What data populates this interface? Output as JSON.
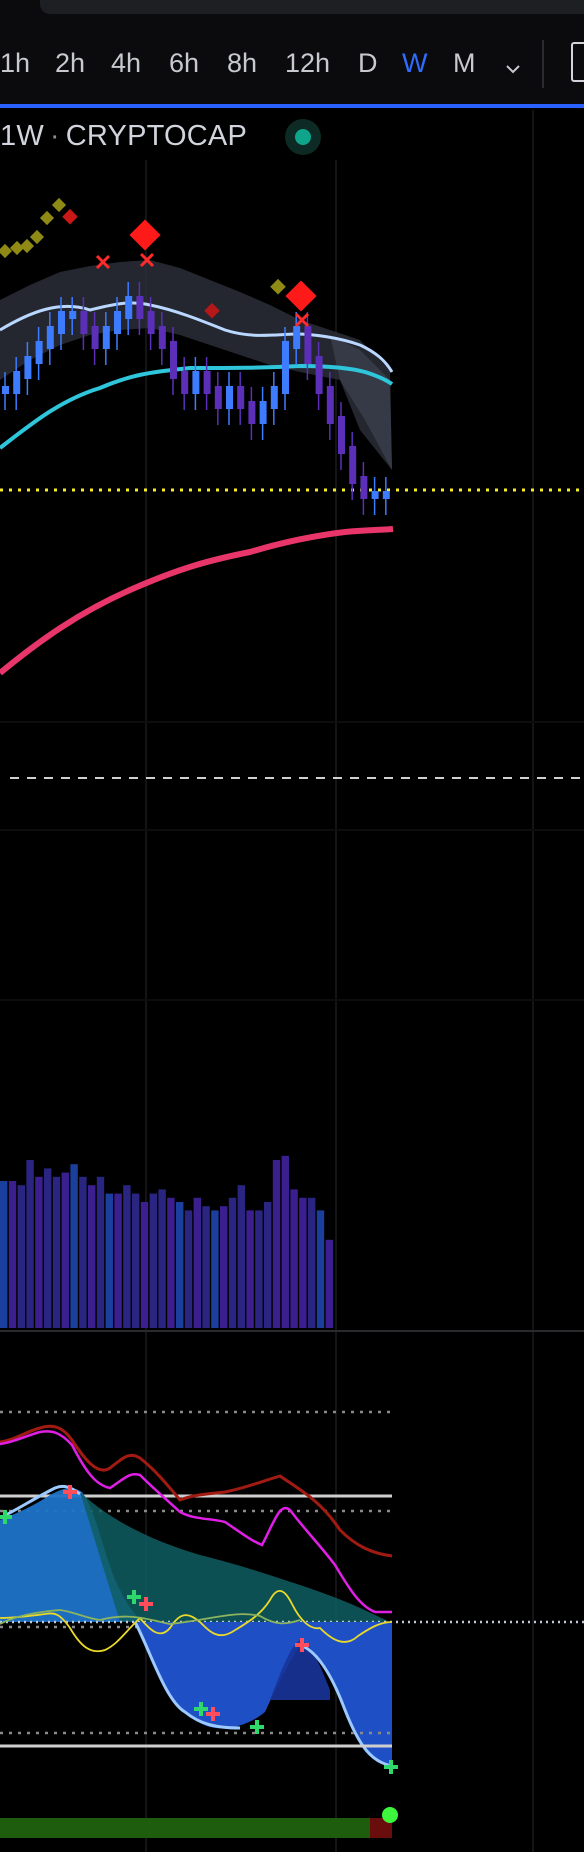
{
  "toolbar": {
    "timeframes": [
      {
        "label": "1h",
        "active": false
      },
      {
        "label": "2h",
        "active": false
      },
      {
        "label": "4h",
        "active": false
      },
      {
        "label": "6h",
        "active": false
      },
      {
        "label": "8h",
        "active": false
      },
      {
        "label": "12h",
        "active": false
      },
      {
        "label": "D",
        "active": false
      },
      {
        "label": "W",
        "active": true
      },
      {
        "label": "M",
        "active": false
      }
    ],
    "more_icon": "chevron-down-icon",
    "layout_icon": "layout-icon"
  },
  "symbol": {
    "interval": "1W",
    "name": "CRYPTOCAP",
    "status_icon": "live-status-icon"
  },
  "colors": {
    "background": "#000000",
    "accent": "#2962ff",
    "candle_up": "#3d7bff",
    "candle_down": "#5b2fb8",
    "fast_ma": "#b9d7ff",
    "slow_ma": "#2fc6dc",
    "long_ma": "#e8356a",
    "support_line": "#f3ec2b",
    "signal_buy": "#2fd86b",
    "signal_sell": "#ff4757",
    "signal_diamond": "#ff1a1a",
    "oscillator_fast": "#e01fe6",
    "oscillator_slow": "#a11b12",
    "wave_fill": "#1e73c8",
    "momentum_fill": "#1f4fc4"
  },
  "chart_data": {
    "type": "line",
    "panes": [
      "price",
      "volume",
      "oscillator"
    ],
    "price": {
      "series": [
        {
          "values": [
            8,
            9,
            10,
            11,
            12,
            13,
            13,
            12,
            11,
            12,
            13,
            14,
            13,
            12,
            11,
            9,
            8,
            9,
            8,
            7,
            8,
            7,
            6,
            7,
            8,
            11,
            12,
            10,
            8,
            6,
            4,
            2,
            1,
            1,
            1
          ]
        }
      ],
      "signals": {
        "sell_markers": 4,
        "diamond_markers": 6
      }
    },
    "volume": {
      "values": [
        35,
        35,
        34,
        40,
        36,
        38,
        36,
        37,
        39,
        36,
        34,
        36,
        32,
        32,
        34,
        32,
        30,
        32,
        33,
        31,
        30,
        28,
        31,
        29,
        28,
        29,
        31,
        34,
        28,
        28,
        30,
        40,
        41,
        33,
        31,
        31,
        28,
        21
      ]
    },
    "oscillator": {
      "series": [
        {
          "values": [
            82,
            84,
            86,
            90,
            88,
            76,
            70,
            68,
            72,
            65,
            60,
            58,
            56,
            54,
            57,
            55,
            52,
            58,
            62,
            55,
            44,
            40
          ]
        },
        {
          "values": [
            76,
            78,
            80,
            83,
            82,
            70,
            62,
            55,
            58,
            48,
            40,
            36,
            38,
            42,
            38,
            34,
            32,
            44,
            41,
            30,
            20,
            16
          ]
        },
        {
          "values": [
            52,
            55,
            64,
            60,
            32,
            14,
            2,
            -20,
            -34,
            -40,
            -42,
            -38,
            -30,
            -28,
            -10,
            -16,
            -22,
            -34,
            -52,
            -64,
            -70
          ]
        }
      ],
      "levels": [
        60,
        0,
        -60
      ]
    }
  }
}
